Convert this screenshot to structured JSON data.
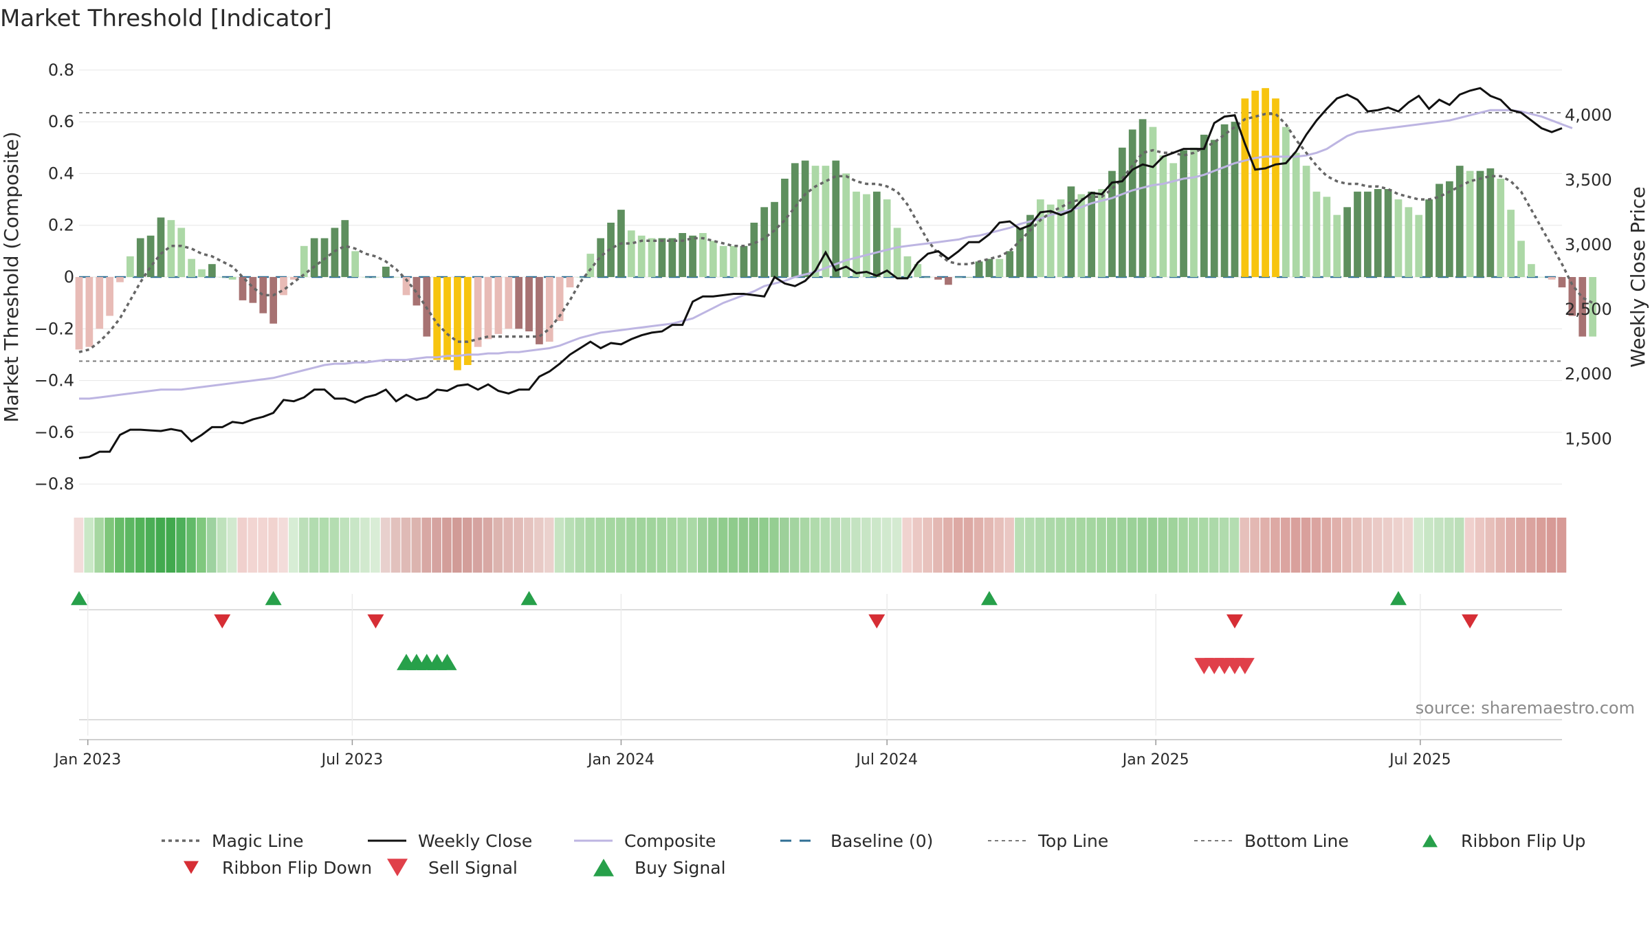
{
  "colors": {
    "bullish_dark": "#5e8f5e",
    "bullish_light": "#acd8a6",
    "bearish_dark": "#a77272",
    "bearish_light": "#e8bbb6",
    "extreme": "#f7c40f",
    "magic_line": "#666666",
    "weekly_close": "#111111",
    "composite": "#bdb5e2",
    "baseline": "#2f6f94",
    "threshold_line": "#7a7a7a",
    "buy_marker": "#27a04a",
    "sell_marker": "#d62e35",
    "grid": "#e6e6e6"
  },
  "chart_data": {
    "type": "bar",
    "title": "Market Threshold [Indicator]",
    "ylabel_left": "Market Threshold (Composite)",
    "ylabel_right": "Weekly Close Price",
    "ylim_left": [
      -0.85,
      0.85
    ],
    "ylim_right": [
      1050,
      4450
    ],
    "yticks_left": [
      "0.8",
      "0.6",
      "0.4",
      "0.2",
      "0",
      "−0.2",
      "−0.4",
      "−0.6",
      "−0.8"
    ],
    "yticks_left_values": [
      0.8,
      0.6,
      0.4,
      0.2,
      0,
      -0.2,
      -0.4,
      -0.6,
      -0.8
    ],
    "yticks_right": [
      "4,000",
      "3,500",
      "3,000",
      "2,500",
      "2,000",
      "1,500"
    ],
    "yticks_right_values": [
      4000,
      3500,
      3000,
      2500,
      2000,
      1500
    ],
    "top_line": 0.635,
    "bottom_line": -0.325,
    "baseline": 0,
    "x_start": "2022-12-26",
    "x_end": "2025-10-06",
    "xtick_labels": [
      "Jan 2023",
      "Jul 2023",
      "Jan 2024",
      "Jul 2024",
      "Jan 2025",
      "Jul 2025"
    ],
    "xtick_dates": [
      "2023-01-01",
      "2023-07-01",
      "2024-01-01",
      "2024-07-01",
      "2025-01-01",
      "2025-07-01"
    ],
    "bars": {
      "dates_start": "2022-12-26",
      "interval_days": 7,
      "values": [
        -0.28,
        -0.27,
        -0.2,
        -0.15,
        -0.02,
        0.08,
        0.15,
        0.16,
        0.23,
        0.22,
        0.19,
        0.07,
        0.03,
        0.05,
        0.0,
        -0.01,
        -0.09,
        -0.1,
        -0.14,
        -0.18,
        -0.07,
        -0.01,
        0.12,
        0.15,
        0.15,
        0.19,
        0.22,
        0.1,
        0.0,
        0.0,
        0.04,
        0.0,
        -0.07,
        -0.11,
        -0.23,
        -0.32,
        -0.32,
        -0.36,
        -0.34,
        -0.27,
        -0.24,
        -0.22,
        -0.2,
        -0.2,
        -0.21,
        -0.26,
        -0.25,
        -0.17,
        -0.04,
        0.0,
        0.09,
        0.15,
        0.21,
        0.26,
        0.18,
        0.16,
        0.15,
        0.15,
        0.15,
        0.17,
        0.16,
        0.17,
        0.14,
        0.12,
        0.12,
        0.12,
        0.21,
        0.27,
        0.29,
        0.38,
        0.44,
        0.45,
        0.43,
        0.43,
        0.45,
        0.4,
        0.33,
        0.32,
        0.33,
        0.3,
        0.19,
        0.08,
        0.05,
        0.0,
        -0.01,
        -0.03,
        0.0,
        0.0,
        0.06,
        0.07,
        0.07,
        0.1,
        0.19,
        0.24,
        0.3,
        0.28,
        0.3,
        0.35,
        0.32,
        0.33,
        0.34,
        0.41,
        0.5,
        0.57,
        0.61,
        0.58,
        0.47,
        0.44,
        0.49,
        0.5,
        0.55,
        0.53,
        0.59,
        0.6,
        0.69,
        0.72,
        0.73,
        0.69,
        0.58,
        0.48,
        0.43,
        0.33,
        0.31,
        0.24,
        0.27,
        0.33,
        0.33,
        0.34,
        0.34,
        0.3,
        0.27,
        0.24,
        0.3,
        0.36,
        0.37,
        0.43,
        0.41,
        0.41,
        0.42,
        0.38,
        0.26,
        0.14,
        0.05,
        0.0,
        -0.01,
        -0.04,
        -0.15,
        -0.23,
        -0.23
      ],
      "bar_colors": [
        "BL",
        "BL",
        "BL",
        "BL",
        "BL",
        "GL",
        "GD",
        "GD",
        "GD",
        "GL",
        "GL",
        "GL",
        "GL",
        "GD",
        "GL",
        "GL",
        "BD",
        "BD",
        "BD",
        "BD",
        "BL",
        "BL",
        "GL",
        "GD",
        "GD",
        "GD",
        "GD",
        "GL",
        "GL",
        "GL",
        "GD",
        "GL",
        "BL",
        "BD",
        "BD",
        "Y",
        "Y",
        "Y",
        "Y",
        "BL",
        "BL",
        "BL",
        "BL",
        "BD",
        "BD",
        "BD",
        "BL",
        "BL",
        "BL",
        "GL",
        "GL",
        "GD",
        "GD",
        "GD",
        "GL",
        "GL",
        "GL",
        "GD",
        "GD",
        "GD",
        "GD",
        "GL",
        "GL",
        "GL",
        "GL",
        "GD",
        "GD",
        "GD",
        "GD",
        "GD",
        "GD",
        "GD",
        "GL",
        "GL",
        "GD",
        "GL",
        "GL",
        "GL",
        "GD",
        "GL",
        "GL",
        "GL",
        "GL",
        "GL",
        "BD",
        "BD",
        "GL",
        "GD",
        "GD",
        "GD",
        "GL",
        "GD",
        "GD",
        "GD",
        "GL",
        "GL",
        "GL",
        "GD",
        "GL",
        "GD",
        "GL",
        "GD",
        "GD",
        "GD",
        "GD",
        "GL",
        "GL",
        "GL",
        "GD",
        "GL",
        "GD",
        "GD",
        "GD",
        "GD",
        "Y",
        "Y",
        "Y",
        "Y",
        "GL",
        "GL",
        "GL",
        "GL",
        "GL",
        "GL",
        "GD",
        "GD",
        "GD",
        "GD",
        "GD",
        "GL",
        "GL",
        "GL",
        "GD",
        "GD",
        "GD",
        "GD",
        "GL",
        "GD",
        "GD",
        "GL",
        "GL",
        "GL",
        "GL",
        "GL",
        "BL",
        "BD",
        "BD",
        "BD"
      ]
    },
    "series": [
      {
        "name": "Magic Line",
        "key": "magic",
        "values": [
          -0.29,
          -0.28,
          -0.25,
          -0.21,
          -0.16,
          -0.09,
          -0.02,
          0.04,
          0.09,
          0.12,
          0.12,
          0.11,
          0.09,
          0.08,
          0.06,
          0.04,
          0.0,
          -0.04,
          -0.07,
          -0.07,
          -0.05,
          -0.02,
          0.01,
          0.04,
          0.07,
          0.1,
          0.12,
          0.11,
          0.09,
          0.08,
          0.06,
          0.03,
          -0.01,
          -0.06,
          -0.12,
          -0.18,
          -0.22,
          -0.25,
          -0.25,
          -0.24,
          -0.23,
          -0.23,
          -0.23,
          -0.23,
          -0.23,
          -0.23,
          -0.2,
          -0.15,
          -0.09,
          -0.02,
          0.03,
          0.08,
          0.11,
          0.13,
          0.13,
          0.14,
          0.14,
          0.14,
          0.14,
          0.14,
          0.15,
          0.15,
          0.14,
          0.13,
          0.12,
          0.12,
          0.13,
          0.15,
          0.18,
          0.22,
          0.27,
          0.32,
          0.35,
          0.37,
          0.39,
          0.39,
          0.37,
          0.36,
          0.36,
          0.35,
          0.33,
          0.28,
          0.21,
          0.14,
          0.09,
          0.06,
          0.05,
          0.05,
          0.06,
          0.07,
          0.08,
          0.1,
          0.14,
          0.18,
          0.22,
          0.25,
          0.27,
          0.29,
          0.3,
          0.31,
          0.31,
          0.34,
          0.38,
          0.43,
          0.48,
          0.49,
          0.48,
          0.48,
          0.47,
          0.48,
          0.5,
          0.52,
          0.55,
          0.58,
          0.61,
          0.62,
          0.63,
          0.63,
          0.59,
          0.53,
          0.48,
          0.43,
          0.39,
          0.37,
          0.36,
          0.36,
          0.35,
          0.35,
          0.34,
          0.32,
          0.31,
          0.3,
          0.3,
          0.31,
          0.33,
          0.35,
          0.37,
          0.38,
          0.39,
          0.39,
          0.37,
          0.33,
          0.26,
          0.19,
          0.12,
          0.05,
          -0.03,
          -0.08,
          -0.1
        ]
      },
      {
        "name": "Weekly Close",
        "key": "close",
        "values": [
          1350,
          1360,
          1400,
          1400,
          1530,
          1570,
          1570,
          1565,
          1560,
          1575,
          1560,
          1480,
          1530,
          1590,
          1590,
          1630,
          1620,
          1650,
          1670,
          1700,
          1800,
          1790,
          1820,
          1880,
          1880,
          1810,
          1810,
          1780,
          1820,
          1840,
          1880,
          1790,
          1840,
          1800,
          1820,
          1880,
          1870,
          1910,
          1920,
          1880,
          1920,
          1870,
          1850,
          1880,
          1880,
          1980,
          2020,
          2080,
          2150,
          2200,
          2250,
          2200,
          2240,
          2230,
          2270,
          2300,
          2320,
          2330,
          2380,
          2380,
          2560,
          2600,
          2600,
          2610,
          2620,
          2620,
          2610,
          2600,
          2750,
          2700,
          2680,
          2720,
          2800,
          2940,
          2800,
          2830,
          2780,
          2790,
          2760,
          2800,
          2740,
          2740,
          2860,
          2930,
          2950,
          2890,
          2950,
          3020,
          3020,
          3080,
          3170,
          3180,
          3120,
          3150,
          3250,
          3260,
          3230,
          3260,
          3340,
          3400,
          3390,
          3480,
          3490,
          3580,
          3620,
          3600,
          3680,
          3710,
          3740,
          3740,
          3740,
          3940,
          3990,
          4000,
          3780,
          3580,
          3590,
          3620,
          3630,
          3720,
          3850,
          3960,
          4050,
          4130,
          4160,
          4120,
          4030,
          4040,
          4060,
          4030,
          4100,
          4150,
          4050,
          4120,
          4080,
          4160,
          4190,
          4210,
          4150,
          4120,
          4040,
          4020,
          3960,
          3900,
          3870,
          3900
        ],
        "extended_start": -20
      },
      {
        "name": "Composite",
        "key": "composite",
        "values": [
          1810,
          1810,
          1820,
          1830,
          1840,
          1850,
          1860,
          1870,
          1880,
          1880,
          1880,
          1890,
          1900,
          1910,
          1920,
          1930,
          1940,
          1950,
          1960,
          1970,
          1990,
          2010,
          2030,
          2050,
          2070,
          2080,
          2080,
          2090,
          2090,
          2100,
          2110,
          2110,
          2110,
          2120,
          2130,
          2130,
          2140,
          2140,
          2150,
          2150,
          2160,
          2160,
          2170,
          2170,
          2180,
          2190,
          2200,
          2220,
          2250,
          2280,
          2300,
          2320,
          2330,
          2340,
          2350,
          2360,
          2370,
          2380,
          2390,
          2410,
          2430,
          2470,
          2510,
          2550,
          2580,
          2610,
          2640,
          2680,
          2700,
          2720,
          2750,
          2770,
          2790,
          2820,
          2850,
          2880,
          2900,
          2920,
          2940,
          2960,
          2980,
          2990,
          3000,
          3010,
          3020,
          3030,
          3040,
          3060,
          3070,
          3090,
          3110,
          3130,
          3160,
          3180,
          3200,
          3230,
          3250,
          3270,
          3290,
          3320,
          3340,
          3360,
          3390,
          3420,
          3440,
          3460,
          3470,
          3490,
          3510,
          3520,
          3540,
          3570,
          3600,
          3630,
          3650,
          3670,
          3680,
          3680,
          3680,
          3680,
          3690,
          3710,
          3740,
          3790,
          3840,
          3870,
          3880,
          3890,
          3900,
          3910,
          3920,
          3930,
          3940,
          3950,
          3960,
          3980,
          4000,
          4020,
          4040,
          4040,
          4040,
          4030,
          4010,
          3990,
          3960,
          3930,
          3900
        ]
      }
    ],
    "ribbon": {
      "colors": [
        "#f3dcda",
        "#c9e8c6",
        "#a6d7a1",
        "#7ec67a",
        "#66bc68",
        "#5cb762",
        "#52b359",
        "#4bae56",
        "#43aa4f",
        "#42a94e",
        "#4eb05a",
        "#62ba68",
        "#80c87e",
        "#9ed2a0",
        "#bfe2bc",
        "#d2e9cf",
        "#f0d0cd",
        "#f2d5d2",
        "#f2d5d2",
        "#f1d3cf",
        "#f3dcda",
        "#d7edd5",
        "#bcdfb9",
        "#b2dcb0",
        "#b0dcad",
        "#b4ddb1",
        "#bfe2bc",
        "#c8e6c6",
        "#d1e9ce",
        "#d9edd6",
        "#e8d0cd",
        "#e2c1bd",
        "#dfbab6",
        "#dcb4af",
        "#d8a8a4",
        "#d5a3a0",
        "#d39e9a",
        "#d19b97",
        "#d39e9a",
        "#d5a3a0",
        "#d8a8a4",
        "#dcb4af",
        "#e0b8b4",
        "#e2bcb8",
        "#e5c3bf",
        "#e8cac6",
        "#ebd1cd",
        "#c6e4c2",
        "#b8dfb5",
        "#b0dbad",
        "#aad9a6",
        "#a8d8a4",
        "#a5d7a1",
        "#a4d6a0",
        "#a2d59e",
        "#a0d49c",
        "#a0d49c",
        "#a2d59e",
        "#a6d7a1",
        "#a8d8a4",
        "#aad9a6",
        "#9cd199",
        "#95ce92",
        "#90cc8d",
        "#8fcb8c",
        "#8ec98b",
        "#8ec98b",
        "#90cc8d",
        "#95ce92",
        "#9dd09a",
        "#a3d4a0",
        "#a9d7a5",
        "#b0dbac",
        "#b5ddb2",
        "#badeb7",
        "#bfe1bc",
        "#c4e3c1",
        "#c8e5c5",
        "#cce7c9",
        "#d1e9ce",
        "#d4eaD1",
        "#f0d3cf",
        "#ebc8c4",
        "#e8c2bd",
        "#e3b8b3",
        "#e0b0ab",
        "#dda9a4",
        "#dda9a4",
        "#e0b0ab",
        "#e3b8b3",
        "#e7c0bb",
        "#eaC7c3",
        "#b8dfb5",
        "#b4ddb1",
        "#b0dbad",
        "#acd9a9",
        "#aad9a6",
        "#a8d8a4",
        "#a6d7a1",
        "#a4d6a0",
        "#a2d59e",
        "#9fd39b",
        "#9dd29a",
        "#9bd198",
        "#99d096",
        "#97cf94",
        "#9bd198",
        "#9fd39b",
        "#a4d6a0",
        "#a8d8a4",
        "#aad9a6",
        "#acd9a9",
        "#b0dbad",
        "#b4ddb1",
        "#e6c0bb",
        "#e3b8b3",
        "#e0b0ab",
        "#dda9a4",
        "#dba4a0",
        "#d9a09c",
        "#d9a09c",
        "#dba4a0",
        "#dda9a4",
        "#e0b0ab",
        "#e3b8b3",
        "#e6c0bb",
        "#e8c5c1",
        "#eacAc6",
        "#ebcdc9",
        "#edd1cd",
        "#eed4d0",
        "#d2eacf",
        "#c8e6c5",
        "#c4e3c1",
        "#c0e1bd",
        "#bcdfb9",
        "#f0d0cd",
        "#ebc6c2",
        "#e7bfba",
        "#e3b6b1",
        "#e0aeaa",
        "#dda8a3",
        "#dba39f",
        "#d99e99",
        "#d79a96",
        "#d79a96"
      ]
    },
    "markers": {
      "ribbon_flip_up": [
        "2022-12-26",
        "2023-05-08",
        "2023-10-30",
        "2024-09-09",
        "2025-06-16"
      ],
      "ribbon_flip_down": [
        "2023-04-03",
        "2023-07-17",
        "2024-06-24",
        "2025-02-24",
        "2025-08-04"
      ],
      "buy_signal": [
        "2023-08-07",
        "2023-08-14",
        "2023-08-21",
        "2023-08-28",
        "2023-09-04"
      ],
      "sell_signal": [
        "2025-02-03",
        "2025-02-10",
        "2025-02-17",
        "2025-02-24",
        "2025-03-03"
      ]
    },
    "legend": [
      {
        "label": "Magic Line",
        "kind": "dotted",
        "color": "#666666"
      },
      {
        "label": "Weekly Close",
        "kind": "line",
        "color": "#111111"
      },
      {
        "label": "Composite",
        "kind": "line",
        "color": "#bdb5e2"
      },
      {
        "label": "Baseline (0)",
        "kind": "dashed",
        "color": "#2f6f94"
      },
      {
        "label": "Top Line",
        "kind": "dotted-thin",
        "color": "#7a7a7a"
      },
      {
        "label": "Bottom Line",
        "kind": "dotted-thin",
        "color": "#7a7a7a"
      },
      {
        "label": "Ribbon Flip Up",
        "kind": "tri-up-small",
        "color": "#27a04a"
      },
      {
        "label": "Ribbon Flip Down",
        "kind": "tri-down-small",
        "color": "#d62e35"
      },
      {
        "label": "Sell Signal",
        "kind": "tri-down-big",
        "color": "#e0404a"
      },
      {
        "label": "Buy Signal",
        "kind": "tri-up-big",
        "color": "#27a04a"
      }
    ],
    "source": "source: sharemaestro.com"
  }
}
